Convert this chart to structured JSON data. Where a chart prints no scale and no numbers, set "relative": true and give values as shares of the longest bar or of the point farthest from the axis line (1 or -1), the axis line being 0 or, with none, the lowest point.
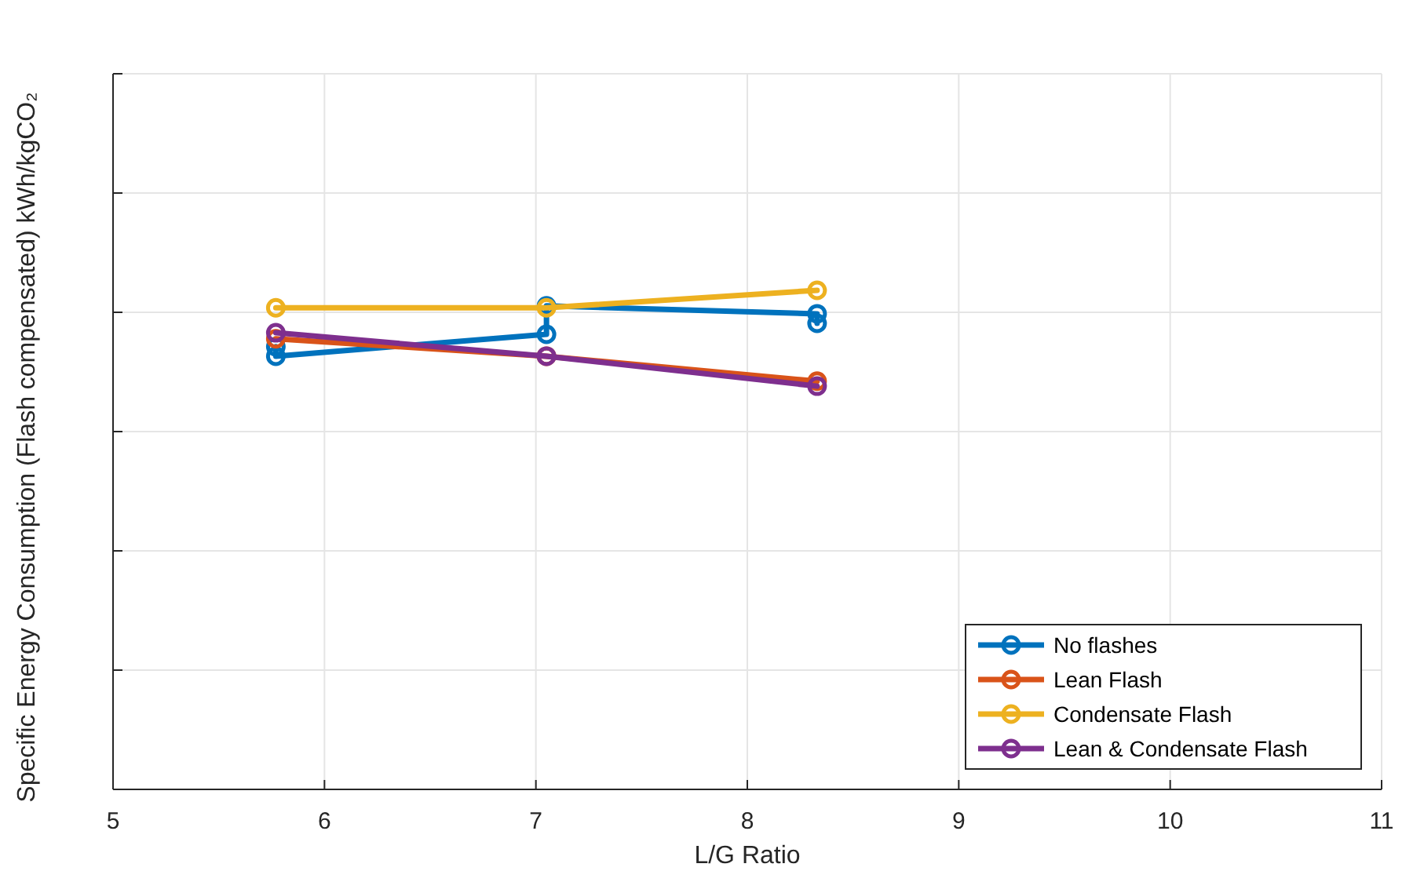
{
  "chart_data": {
    "type": "line",
    "xlabel": "L/G Ratio",
    "ylabel": "Specific Energy Consumption (Flash compensated) kWh/kgCO₂",
    "relative": true,
    "xlim": [
      5,
      11
    ],
    "xticks": [
      5,
      6,
      7,
      8,
      9,
      10,
      11
    ],
    "grid": true,
    "legend": "bottom right",
    "marker": "circle",
    "line_style": "solid",
    "series": [
      {
        "name": "No flashes",
        "color": "#0072bd",
        "x": [
          5.77,
          5.77,
          7.05,
          7.05,
          8.33,
          8.33
        ],
        "values": [
          0.887,
          0.868,
          0.912,
          0.969,
          0.953,
          0.934
        ]
      },
      {
        "name": "Lean Flash",
        "color": "#d95319",
        "x": [
          5.77,
          7.05,
          8.33
        ],
        "values": [
          0.903,
          0.868,
          0.818
        ]
      },
      {
        "name": "Condensate Flash",
        "color": "#edb120",
        "x": [
          5.77,
          7.05,
          8.33
        ],
        "values": [
          0.965,
          0.965,
          1
        ]
      },
      {
        "name": "Lean & Condensate Flash",
        "color": "#7e2f8e",
        "x": [
          5.77,
          7.05,
          8.33
        ],
        "values": [
          0.915,
          0.868,
          0.808
        ]
      }
    ]
  }
}
